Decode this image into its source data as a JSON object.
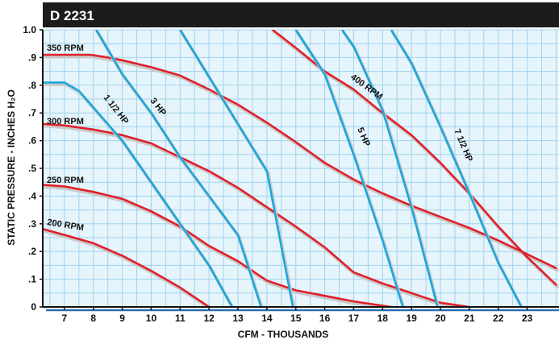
{
  "chart_data": {
    "type": "line",
    "title": "D 2231",
    "xlabel": "CFM - THOUSANDS",
    "ylabel": "STATIC PRESSURE - INCHES H₂O",
    "xlim": [
      6.25,
      24.1
    ],
    "ylim": [
      0,
      1.0
    ],
    "x_ticks": [
      7,
      8,
      9,
      10,
      11,
      12,
      13,
      14,
      15,
      16,
      17,
      18,
      19,
      20,
      21,
      22,
      23
    ],
    "y_ticks": [
      {
        "value": 0,
        "label": "0"
      },
      {
        "value": 0.1,
        "label": ".1"
      },
      {
        "value": 0.2,
        "label": ".2"
      },
      {
        "value": 0.3,
        "label": ".3"
      },
      {
        "value": 0.4,
        "label": ".4"
      },
      {
        "value": 0.5,
        "label": ".5"
      },
      {
        "value": 0.6,
        "label": ".6"
      },
      {
        "value": 0.7,
        "label": ".7"
      },
      {
        "value": 0.8,
        "label": ".8"
      },
      {
        "value": 0.9,
        "label": ".9"
      },
      {
        "value": 1.0,
        "label": "1.0"
      }
    ],
    "grid": true,
    "colors": {
      "rpm": "#e0202a",
      "hp": "#1aa7dc",
      "shadow": "#c9c9c9",
      "plot_bg": "#e6f4fb",
      "grid": "#9fd3ee",
      "title_bar": "#1c1c1c",
      "axis": "#2a6fb0"
    },
    "rpm_series": [
      {
        "name": "350 RPM",
        "label": "350 RPM",
        "x": [
          6.3,
          7.0,
          7.9,
          8.5,
          9.0,
          10.0,
          11.0,
          12.0,
          13.0,
          14.0,
          15.0,
          16.0,
          17.0,
          18.0,
          19.0,
          20.0,
          21.0,
          22.0,
          23.0,
          24.0
        ],
        "y": [
          0.91,
          0.91,
          0.91,
          0.9,
          0.89,
          0.865,
          0.835,
          0.785,
          0.73,
          0.665,
          0.595,
          0.52,
          0.46,
          0.41,
          0.365,
          0.325,
          0.285,
          0.24,
          0.19,
          0.14
        ]
      },
      {
        "name": "400 RPM",
        "label": "400 RPM",
        "x": [
          14.2,
          15.0,
          16.0,
          17.0,
          18.0,
          19.0,
          20.0,
          21.0,
          22.0,
          23.0,
          24.0
        ],
        "y": [
          1.0,
          0.935,
          0.85,
          0.785,
          0.7,
          0.62,
          0.52,
          0.41,
          0.29,
          0.18,
          0.08
        ]
      },
      {
        "name": "300 RPM",
        "label": "300 RPM",
        "x": [
          6.3,
          7.0,
          8.0,
          9.0,
          10.0,
          11.0,
          12.0,
          13.0,
          14.0,
          15.0,
          16.0,
          17.0,
          18.0,
          19.0,
          20.0,
          21.0
        ],
        "y": [
          0.66,
          0.655,
          0.64,
          0.62,
          0.59,
          0.54,
          0.49,
          0.43,
          0.36,
          0.29,
          0.215,
          0.125,
          0.085,
          0.05,
          0.015,
          0.0
        ]
      },
      {
        "name": "250 RPM",
        "label": "250 RPM",
        "x": [
          6.3,
          7.0,
          8.0,
          9.0,
          10.0,
          11.0,
          12.0,
          13.0,
          14.0,
          15.0,
          16.0,
          17.0,
          18.3
        ],
        "y": [
          0.44,
          0.435,
          0.415,
          0.39,
          0.345,
          0.29,
          0.22,
          0.165,
          0.095,
          0.06,
          0.04,
          0.02,
          0.0
        ]
      },
      {
        "name": "200 RPM",
        "label": "200 RPM",
        "x": [
          6.3,
          7.0,
          8.0,
          9.0,
          10.0,
          11.0,
          12.0
        ],
        "y": [
          0.28,
          0.26,
          0.23,
          0.185,
          0.13,
          0.07,
          0.0
        ]
      }
    ],
    "hp_series": [
      {
        "name": "1 1/2 HP",
        "label": "1 1/2 HP",
        "x": [
          6.3,
          7.0,
          7.5,
          8.0,
          9.0,
          10.0,
          11.0,
          12.0,
          12.8
        ],
        "y": [
          0.81,
          0.81,
          0.78,
          0.72,
          0.6,
          0.45,
          0.3,
          0.15,
          0.0
        ]
      },
      {
        "name": "3 HP",
        "label": "3 HP",
        "x": [
          8.1,
          9.0,
          10.0,
          11.0,
          12.0,
          13.0,
          13.8
        ],
        "y": [
          1.0,
          0.84,
          0.7,
          0.54,
          0.4,
          0.26,
          0.0
        ]
      },
      {
        "name": "5 HP",
        "label": "5 HP",
        "x": [
          15.0,
          16.0,
          17.0,
          18.0,
          18.7
        ],
        "y": [
          1.0,
          0.84,
          0.55,
          0.24,
          0.0
        ]
      },
      {
        "name": "7 1/2 HP",
        "label": "7 1/2 HP",
        "x": [
          18.3,
          19.0,
          20.0,
          21.0,
          22.0,
          22.8
        ],
        "y": [
          1.0,
          0.88,
          0.65,
          0.41,
          0.16,
          0.0
        ]
      },
      {
        "name": "unlabeled-hp-a",
        "label": "",
        "x": [
          11.0,
          12.0,
          13.0,
          14.0,
          14.9
        ],
        "y": [
          1.0,
          0.83,
          0.66,
          0.49,
          0.0
        ]
      },
      {
        "name": "unlabeled-hp-b",
        "label": "",
        "x": [
          16.6,
          17.0,
          18.0,
          19.0,
          19.9
        ],
        "y": [
          1.0,
          0.94,
          0.71,
          0.36,
          0.0
        ]
      }
    ]
  }
}
